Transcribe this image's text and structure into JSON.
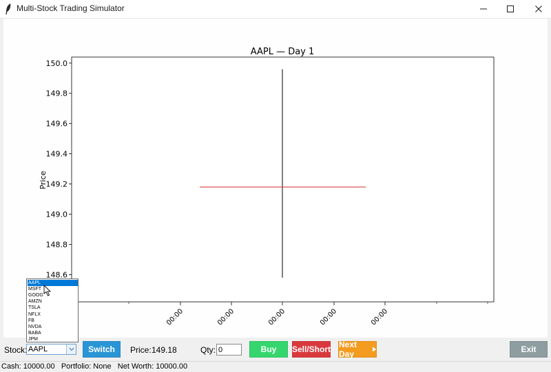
{
  "window": {
    "title": "Multi-Stock Trading Simulator",
    "minimize_icon": "minimize-icon",
    "maximize_icon": "maximize-icon",
    "close_icon": "close-icon"
  },
  "chart_data": {
    "type": "line",
    "title": "AAPL — Day 1",
    "ylabel": "Price",
    "xlabel": "",
    "ylim": [
      148.42,
      150.04
    ],
    "yticks": [
      "148.6",
      "148.8",
      "149.0",
      "149.2",
      "149.4",
      "149.6",
      "149.8",
      "150.0"
    ],
    "xtick_labels": [
      "00:00",
      "00:00",
      "00:00",
      "00:00",
      "00:00"
    ],
    "candle": {
      "high": 149.96,
      "low": 148.58,
      "close_line": 149.18,
      "color_wick": "#000000",
      "color_close": "#d62728"
    }
  },
  "controls": {
    "stock_label": "Stock:",
    "stock_value": "AAPL",
    "switch_label": "Switch",
    "price_label": "Price:",
    "price_value": "149.18",
    "qty_label": "Qty:",
    "qty_value": "0",
    "buy_label": "Buy",
    "sell_label": "Sell/Short",
    "next_day_label": "Next Day",
    "next_day_icon": "play-arrow-icon",
    "exit_label": "Exit"
  },
  "dropdown": {
    "options": [
      "AAPL",
      "MSFT",
      "GOOG",
      "AMZN",
      "TSLA",
      "NFLX",
      "FB",
      "NVDA",
      "BABA",
      "JPM"
    ],
    "selected_index": 0
  },
  "status": {
    "text": "Cash: 10000.00   Portfolio: None   Net Worth: 10000.00"
  },
  "colors": {
    "switch": "#2a95d5",
    "buy": "#36d66e",
    "sell": "#d9393d",
    "next_day": "#f39c20",
    "exit": "#8d9da0"
  }
}
